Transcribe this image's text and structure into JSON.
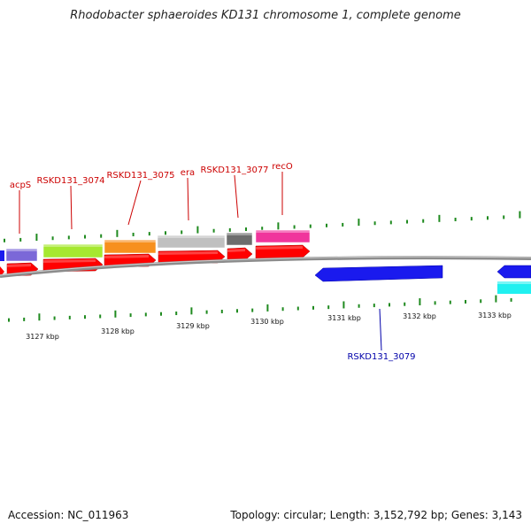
{
  "title": "Rhodobacter sphaeroides KD131 chromosome 1, complete genome",
  "footer": {
    "accession": "Accession: NC_011963",
    "summary": "Topology: circular; Length: 3,152,792 bp; Genes: 3,143"
  },
  "colors": {
    "backbone": "#8c8c8c",
    "forward_cds": "#ff0000",
    "reverse_cds": "#1a1aee",
    "tick": "#1f8a1f",
    "forward_label": "#cc0000",
    "reverse_label": "#0000aa"
  },
  "scale_labels": [
    "3127 kbp",
    "3128 kbp",
    "3129 kbp",
    "3130 kbp",
    "3131 kbp",
    "3132 kbp",
    "3133 kbp"
  ],
  "genes": [
    {
      "label": "acpS",
      "strand": "forward",
      "cog_color": "#7b68d8"
    },
    {
      "label": "RSKD131_3074",
      "strand": "forward",
      "cog_color": "#a6e830"
    },
    {
      "label": "RSKD131_3075",
      "strand": "forward",
      "cog_color": "#f7901e"
    },
    {
      "label": "era",
      "strand": "forward",
      "cog_color": "#c0c0c0"
    },
    {
      "label": "RSKD131_3077",
      "strand": "forward",
      "cog_color": "#6d6d6d"
    },
    {
      "label": "recO",
      "strand": "forward",
      "cog_color": "#f0359c"
    },
    {
      "label": "RSKD131_3079",
      "strand": "reverse",
      "cog_color": "#1a1aee"
    },
    {
      "label": "",
      "strand": "reverse",
      "cog_color": "#20f0f0"
    }
  ]
}
